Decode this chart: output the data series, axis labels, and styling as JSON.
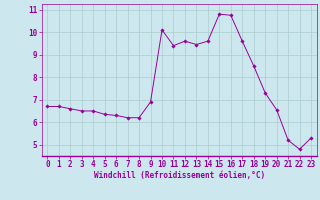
{
  "x": [
    0,
    1,
    2,
    3,
    4,
    5,
    6,
    7,
    8,
    9,
    10,
    11,
    12,
    13,
    14,
    15,
    16,
    17,
    18,
    19,
    20,
    21,
    22,
    23
  ],
  "y": [
    6.7,
    6.7,
    6.6,
    6.5,
    6.5,
    6.35,
    6.3,
    6.2,
    6.2,
    6.9,
    10.1,
    9.4,
    9.6,
    9.45,
    9.6,
    10.8,
    10.75,
    9.6,
    8.5,
    7.3,
    6.55,
    5.2,
    4.8,
    5.3
  ],
  "line_color": "#990099",
  "marker": "D",
  "marker_size": 1.8,
  "bg_color": "#cce8ee",
  "grid_color": "#aacccc",
  "xlabel": "Windchill (Refroidissement éolien,°C)",
  "xlabel_color": "#990099",
  "tick_color": "#990099",
  "xlim": [
    -0.5,
    23.5
  ],
  "ylim": [
    4.5,
    11.25
  ],
  "yticks": [
    5,
    6,
    7,
    8,
    9,
    10,
    11
  ],
  "xticks": [
    0,
    1,
    2,
    3,
    4,
    5,
    6,
    7,
    8,
    9,
    10,
    11,
    12,
    13,
    14,
    15,
    16,
    17,
    18,
    19,
    20,
    21,
    22,
    23
  ],
  "border_color": "#990099",
  "spine_bottom_color": "#990099",
  "tick_fontsize": 5.5,
  "xlabel_fontsize": 5.5
}
